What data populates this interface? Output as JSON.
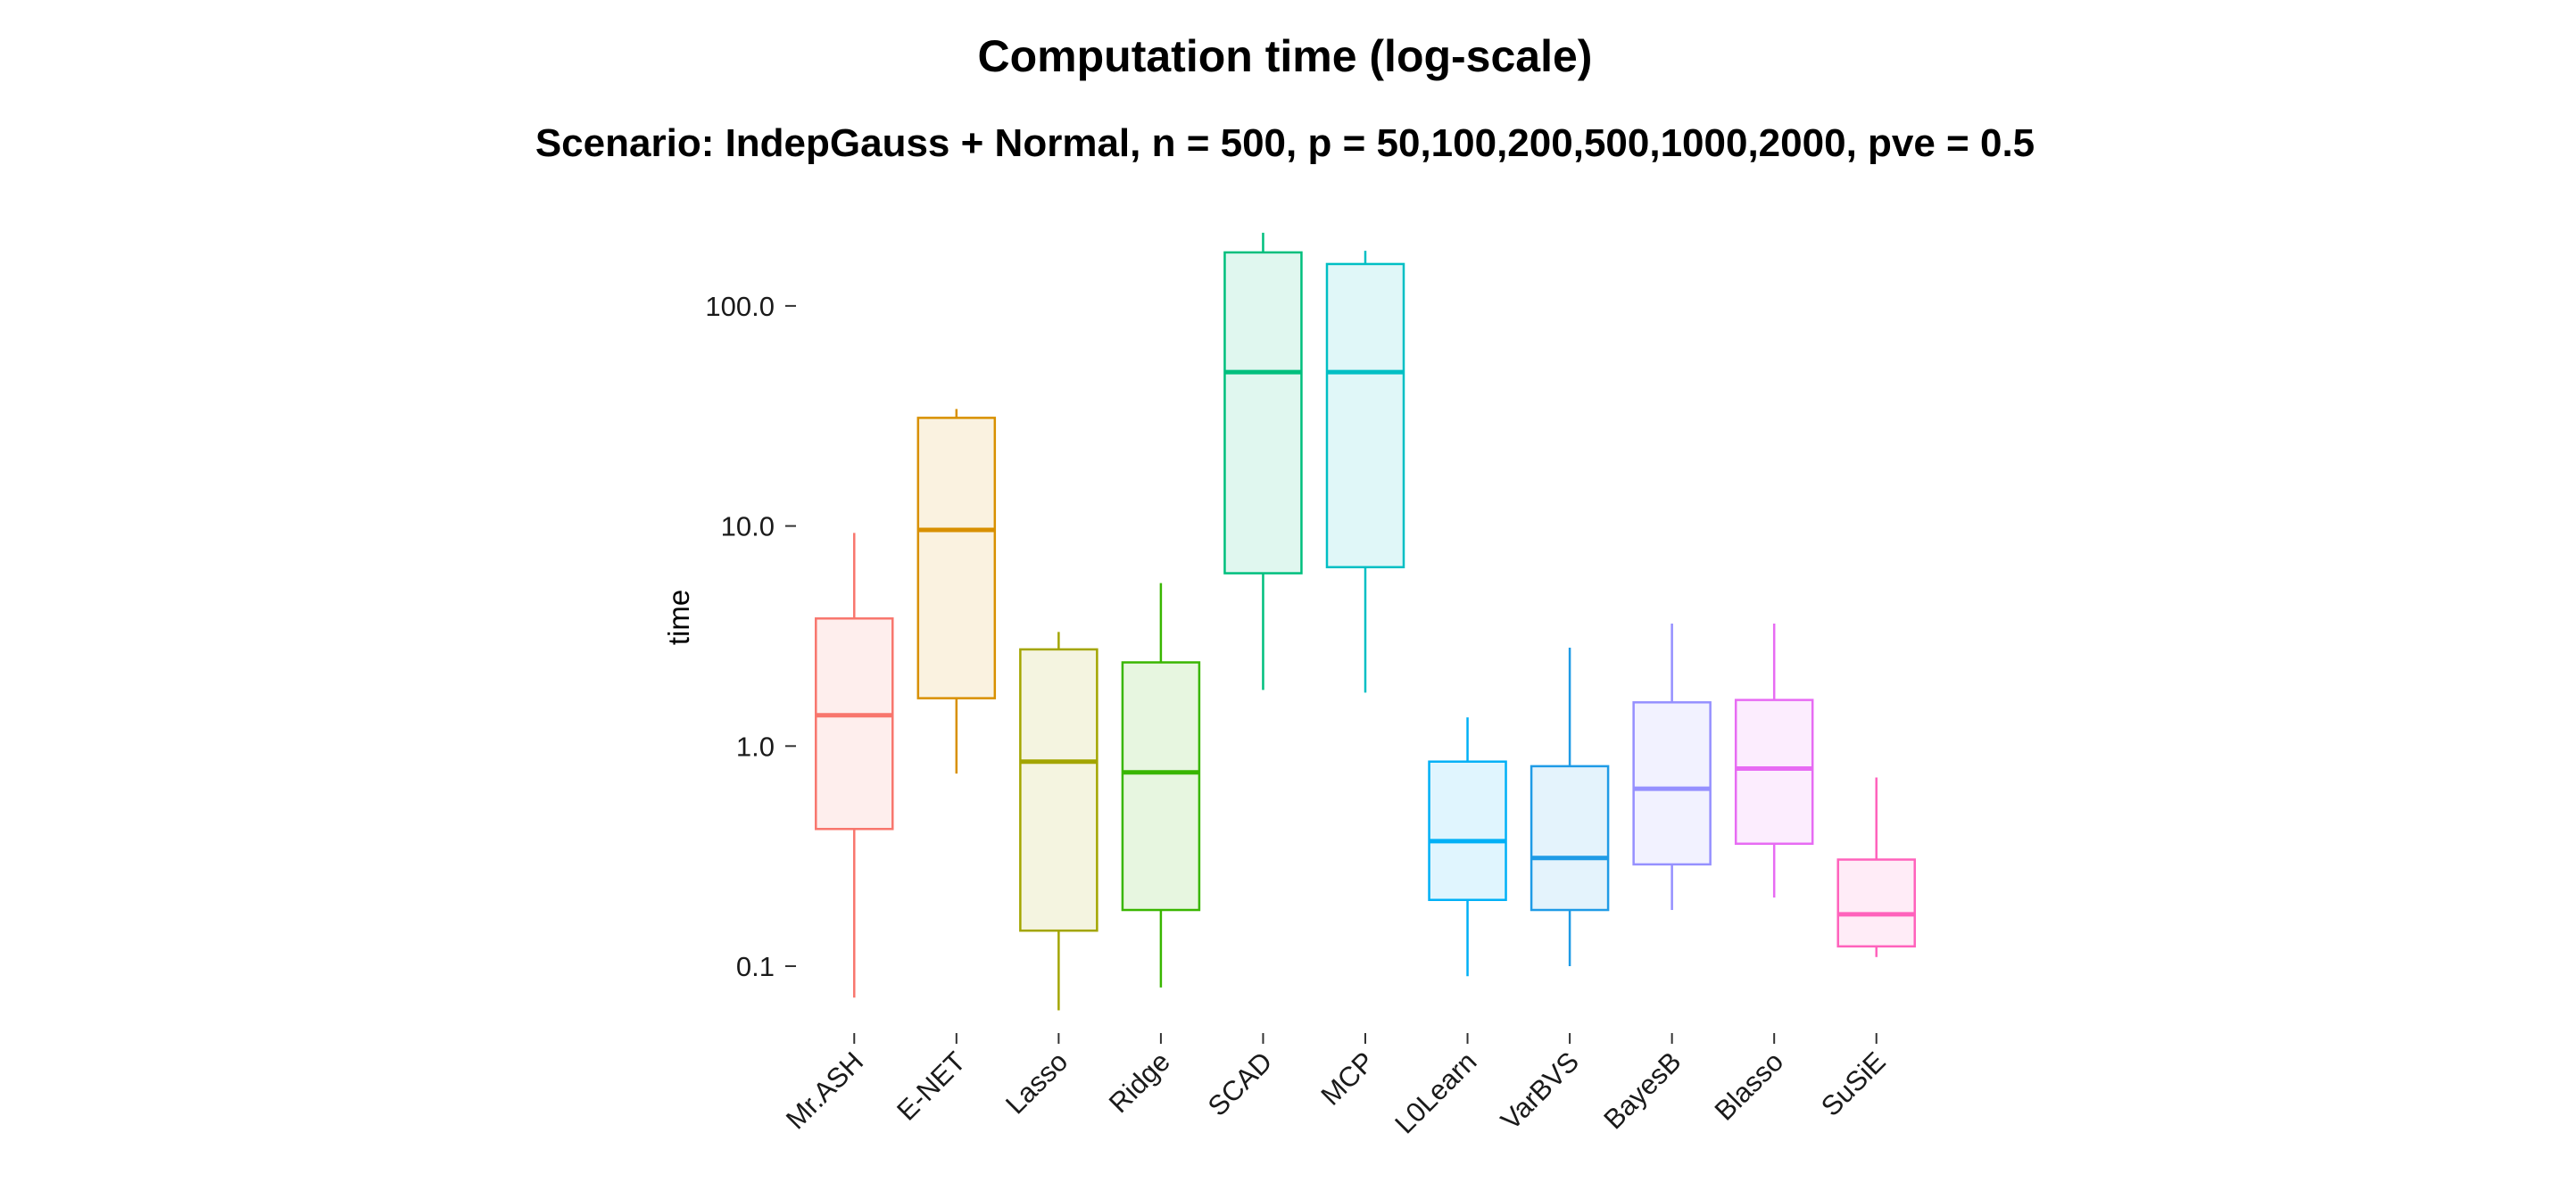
{
  "chart_data": {
    "type": "boxplot",
    "title": "Computation time (log-scale)",
    "subtitle": "Scenario: IndepGauss + Normal, n = 500, p = 50,100,200,500,1000,2000, pve = 0.5",
    "xlabel": "",
    "ylabel": "time",
    "yscale": "log10",
    "ylim": [
      0.05,
      260
    ],
    "yticks": [
      0.1,
      1.0,
      10.0,
      100.0
    ],
    "ytick_labels": [
      "0.1",
      "1.0",
      "10.0",
      "100.0"
    ],
    "grid": false,
    "legend": "none",
    "categories": [
      "Mr.ASH",
      "E-NET",
      "Lasso",
      "Ridge",
      "SCAD",
      "MCP",
      "L0Learn",
      "VarBVS",
      "BayesB",
      "Blasso",
      "SuSiE"
    ],
    "colors": [
      "#F8766D",
      "#D89000",
      "#A3A500",
      "#39B600",
      "#00BF7D",
      "#00BFC4",
      "#00B0F6",
      "#1F9BE6",
      "#9590FF",
      "#E76BF3",
      "#FF62BC"
    ],
    "boxes": [
      {
        "name": "Mr.ASH",
        "whisker_low": 0.072,
        "q1": 0.42,
        "median": 1.38,
        "q3": 3.8,
        "whisker_high": 9.3
      },
      {
        "name": "E-NET",
        "whisker_low": 0.75,
        "q1": 1.65,
        "median": 9.6,
        "q3": 31,
        "whisker_high": 34
      },
      {
        "name": "Lasso",
        "whisker_low": 0.063,
        "q1": 0.145,
        "median": 0.85,
        "q3": 2.75,
        "whisker_high": 3.3
      },
      {
        "name": "Ridge",
        "whisker_low": 0.08,
        "q1": 0.18,
        "median": 0.76,
        "q3": 2.4,
        "whisker_high": 5.5
      },
      {
        "name": "SCAD",
        "whisker_low": 1.8,
        "q1": 6.1,
        "median": 50,
        "q3": 175,
        "whisker_high": 215
      },
      {
        "name": "MCP",
        "whisker_low": 1.75,
        "q1": 6.5,
        "median": 50,
        "q3": 155,
        "whisker_high": 178
      },
      {
        "name": "L0Learn",
        "whisker_low": 0.09,
        "q1": 0.2,
        "median": 0.37,
        "q3": 0.85,
        "whisker_high": 1.35
      },
      {
        "name": "VarBVS",
        "whisker_low": 0.1,
        "q1": 0.18,
        "median": 0.31,
        "q3": 0.81,
        "whisker_high": 2.8
      },
      {
        "name": "BayesB",
        "whisker_low": 0.18,
        "q1": 0.29,
        "median": 0.64,
        "q3": 1.58,
        "whisker_high": 3.6
      },
      {
        "name": "Blasso",
        "whisker_low": 0.205,
        "q1": 0.36,
        "median": 0.79,
        "q3": 1.62,
        "whisker_high": 3.6
      },
      {
        "name": "SuSiE",
        "whisker_low": 0.11,
        "q1": 0.123,
        "median": 0.172,
        "q3": 0.305,
        "whisker_high": 0.72
      }
    ]
  }
}
